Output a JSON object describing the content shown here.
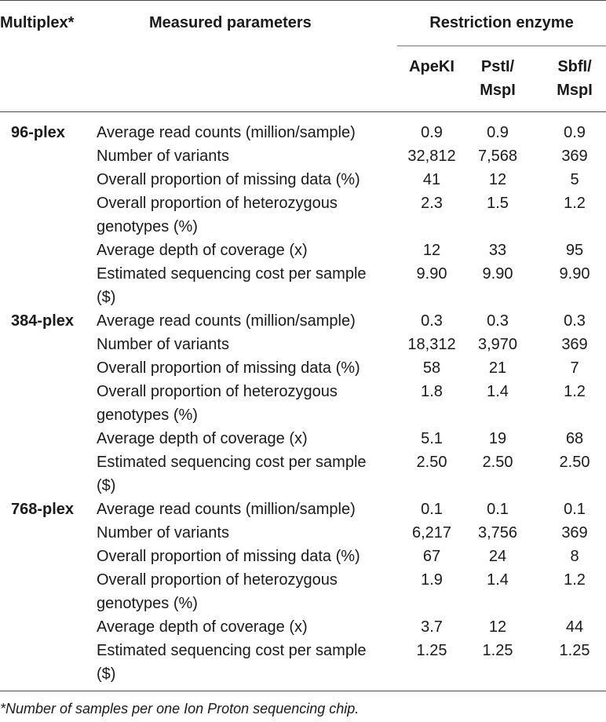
{
  "header": {
    "multiplex": "Multiplex*",
    "measured_parameters": "Measured parameters",
    "restriction_enzyme": "Restriction enzyme",
    "enzymes": [
      {
        "line1": "ApeKI",
        "line2": ""
      },
      {
        "line1": "PstI/",
        "line2": "MspI"
      },
      {
        "line1": "SbfI/",
        "line2": "MspI"
      }
    ]
  },
  "groups": [
    {
      "label": "96-plex",
      "rows": [
        {
          "param": "Average read counts (million/sample)",
          "values": [
            "0.9",
            "0.9",
            "0.9"
          ]
        },
        {
          "param": "Number of variants",
          "values": [
            "32,812",
            "7,568",
            "369"
          ]
        },
        {
          "param": "Overall proportion of missing data (%)",
          "values": [
            "41",
            "12",
            "5"
          ]
        },
        {
          "param": "Overall proportion of heterozygous genotypes (%)",
          "values": [
            "2.3",
            "1.5",
            "1.2"
          ]
        },
        {
          "param": "Average depth of coverage (x)",
          "values": [
            "12",
            "33",
            "95"
          ]
        },
        {
          "param": "Estimated sequencing cost per sample ($)",
          "values": [
            "9.90",
            "9.90",
            "9.90"
          ]
        }
      ]
    },
    {
      "label": "384-plex",
      "rows": [
        {
          "param": "Average read counts (million/sample)",
          "values": [
            "0.3",
            "0.3",
            "0.3"
          ]
        },
        {
          "param": "Number of variants",
          "values": [
            "18,312",
            "3,970",
            "369"
          ]
        },
        {
          "param": "Overall proportion of missing data (%)",
          "values": [
            "58",
            "21",
            "7"
          ]
        },
        {
          "param": "Overall proportion of heterozygous genotypes (%)",
          "values": [
            "1.8",
            "1.4",
            "1.2"
          ]
        },
        {
          "param": "Average depth of coverage (x)",
          "values": [
            "5.1",
            "19",
            "68"
          ]
        },
        {
          "param": "Estimated sequencing cost per sample ($)",
          "values": [
            "2.50",
            "2.50",
            "2.50"
          ]
        }
      ]
    },
    {
      "label": "768-plex",
      "rows": [
        {
          "param": "Average read counts (million/sample)",
          "values": [
            "0.1",
            "0.1",
            "0.1"
          ]
        },
        {
          "param": "Number of variants",
          "values": [
            "6,217",
            "3,756",
            "369"
          ]
        },
        {
          "param": "Overall proportion of missing data (%)",
          "values": [
            "67",
            "24",
            "8"
          ]
        },
        {
          "param": "Overall proportion of heterozygous genotypes (%)",
          "values": [
            "1.9",
            "1.4",
            "1.2"
          ]
        },
        {
          "param": "Average depth of coverage (x)",
          "values": [
            "3.7",
            "12",
            "44"
          ]
        },
        {
          "param": "Estimated sequencing cost per sample ($)",
          "values": [
            "1.25",
            "1.25",
            "1.25"
          ]
        }
      ]
    }
  ],
  "footnote": "*Number of samples per one Ion Proton sequencing chip."
}
